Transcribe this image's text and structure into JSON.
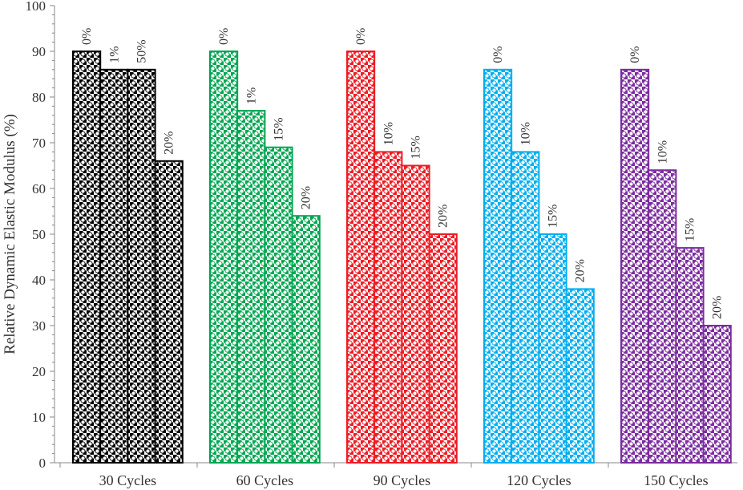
{
  "chart_data": {
    "type": "bar",
    "title": "",
    "xlabel": "",
    "ylabel": "Relative Dynamic Elastic Modulus (%)",
    "ylim": [
      0,
      100
    ],
    "y_ticks": [
      0,
      10,
      20,
      30,
      40,
      50,
      60,
      70,
      80,
      90,
      100
    ],
    "grid": false,
    "legend": "none",
    "pattern": "checkered-circles",
    "groups": [
      {
        "category": "30 Cycles",
        "color": "#000000",
        "bars": [
          {
            "label": "0%",
            "value": 90
          },
          {
            "label": "1%",
            "value": 86
          },
          {
            "label": "50%",
            "value": 86
          },
          {
            "label": "20%",
            "value": 66
          }
        ]
      },
      {
        "category": "60 Cycles",
        "color": "#00A651",
        "bars": [
          {
            "label": "0%",
            "value": 90
          },
          {
            "label": "1%",
            "value": 77
          },
          {
            "label": "15%",
            "value": 69
          },
          {
            "label": "20%",
            "value": 54
          }
        ]
      },
      {
        "category": "90 Cycles",
        "color": "#ED1C24",
        "bars": [
          {
            "label": "0%",
            "value": 90
          },
          {
            "label": "10%",
            "value": 68
          },
          {
            "label": "15%",
            "value": 65
          },
          {
            "label": "20%",
            "value": 50
          }
        ]
      },
      {
        "category": "120 Cycles",
        "color": "#00AEEF",
        "bars": [
          {
            "label": "0%",
            "value": 86
          },
          {
            "label": "10%",
            "value": 68
          },
          {
            "label": "15%",
            "value": 50
          },
          {
            "label": "20%",
            "value": 38
          }
        ]
      },
      {
        "category": "150 Cycles",
        "color": "#7B2C9E",
        "bars": [
          {
            "label": "0%",
            "value": 86
          },
          {
            "label": "10%",
            "value": 64
          },
          {
            "label": "15%",
            "value": 47
          },
          {
            "label": "20%",
            "value": 30
          }
        ]
      }
    ]
  }
}
